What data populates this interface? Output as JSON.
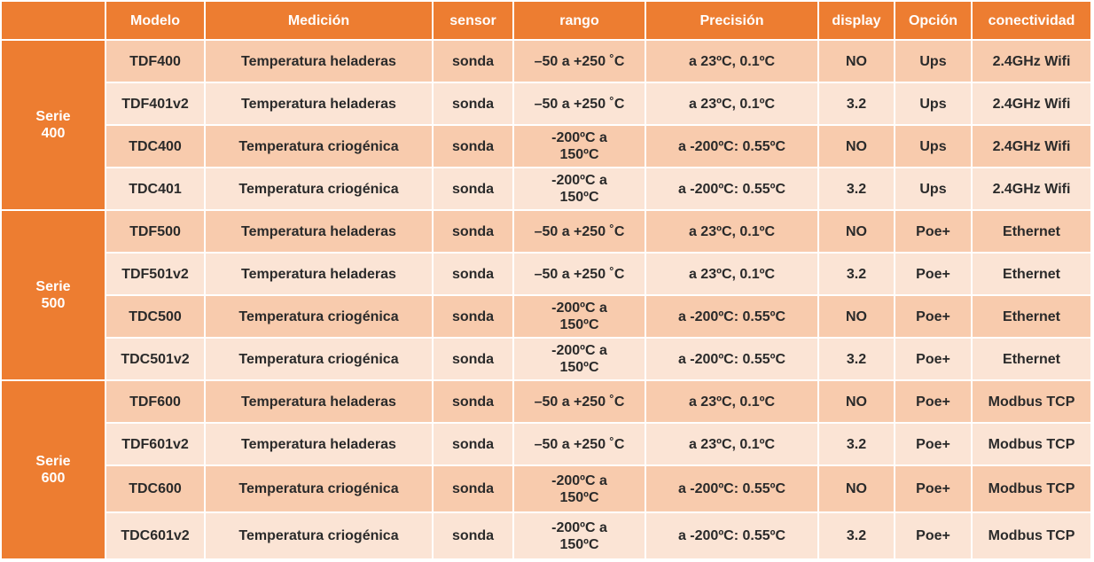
{
  "table": {
    "header": [
      "Modelo",
      "Medición",
      "sensor",
      "rango",
      "Precisión",
      "display",
      "Opción",
      "conectividad"
    ],
    "groups": [
      {
        "label": "Serie 400",
        "rows": [
          [
            "TDF400",
            "Temperatura heladeras",
            "sonda",
            "–50 a +250 ˚C",
            "a 23ºC, 0.1ºC",
            "NO",
            "Ups",
            "2.4GHz Wifi"
          ],
          [
            "TDF401v2",
            "Temperatura heladeras",
            "sonda",
            "–50 a +250 ˚C",
            "a 23ºC, 0.1ºC",
            "3.2",
            "Ups",
            "2.4GHz Wifi"
          ],
          [
            "TDC400",
            "Temperatura criogénica",
            "sonda",
            "-200ºC a 150ºC",
            "a -200ºC: 0.55ºC",
            "NO",
            "Ups",
            "2.4GHz Wifi"
          ],
          [
            "TDC401",
            "Temperatura criogénica",
            "sonda",
            "-200ºC a 150ºC",
            "a -200ºC: 0.55ºC",
            "3.2",
            "Ups",
            "2.4GHz Wifi"
          ]
        ]
      },
      {
        "label": "Serie 500",
        "rows": [
          [
            "TDF500",
            "Temperatura heladeras",
            "sonda",
            "–50 a +250 ˚C",
            "a 23ºC, 0.1ºC",
            "NO",
            "Poe+",
            "Ethernet"
          ],
          [
            "TDF501v2",
            "Temperatura heladeras",
            "sonda",
            "–50 a +250 ˚C",
            "a 23ºC, 0.1ºC",
            "3.2",
            "Poe+",
            "Ethernet"
          ],
          [
            "TDC500",
            "Temperatura criogénica",
            "sonda",
            "-200ºC a 150ºC",
            "a -200ºC: 0.55ºC",
            "NO",
            "Poe+",
            "Ethernet"
          ],
          [
            "TDC501v2",
            "Temperatura criogénica",
            "sonda",
            "-200ºC a 150ºC",
            "a -200ºC: 0.55ºC",
            "3.2",
            "Poe+",
            "Ethernet"
          ]
        ]
      },
      {
        "label": "Serie 600",
        "rows": [
          [
            "TDF600",
            "Temperatura heladeras",
            "sonda",
            "–50 a +250 ˚C",
            "a 23ºC, 0.1ºC",
            "NO",
            "Poe+",
            "Modbus TCP"
          ],
          [
            "TDF601v2",
            "Temperatura heladeras",
            "sonda",
            "–50 a +250 ˚C",
            "a 23ºC, 0.1ºC",
            "3.2",
            "Poe+",
            "Modbus TCP"
          ],
          [
            "TDC600",
            "Temperatura criogénica",
            "sonda",
            "-200ºC a 150ºC",
            "a -200ºC: 0.55ºC",
            "NO",
            "Poe+",
            "Modbus TCP"
          ],
          [
            "TDC601v2",
            "Temperatura criogénica",
            "sonda",
            "-200ºC a 150ºC",
            "a -200ºC: 0.55ºC",
            "3.2",
            "Poe+",
            "Modbus TCP"
          ]
        ]
      }
    ]
  }
}
